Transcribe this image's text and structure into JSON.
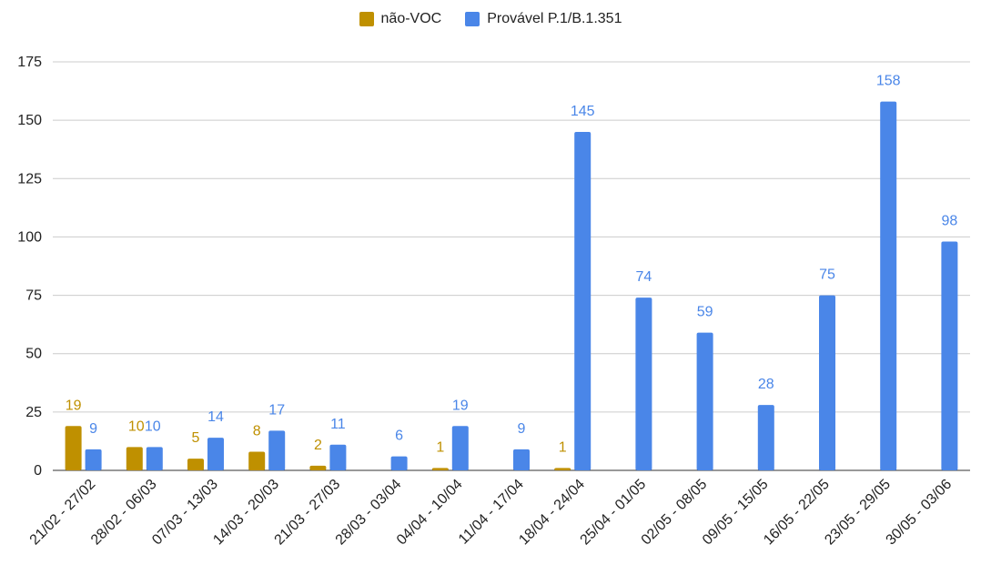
{
  "chart_data": {
    "type": "bar",
    "title": "",
    "xlabel": "",
    "ylabel": "",
    "ylim": [
      0,
      175
    ],
    "yticks": [
      0,
      25,
      50,
      75,
      100,
      125,
      150,
      175
    ],
    "grid": true,
    "legend_position": "top",
    "categories": [
      "21/02 - 27/02",
      "28/02 - 06/03",
      "07/03 - 13/03",
      "14/03 - 20/03",
      "21/03 - 27/03",
      "28/03 - 03/04",
      "04/04 - 10/04",
      "11/04 - 17/04",
      "18/04 - 24/04",
      "25/04 - 01/05",
      "02/05 - 08/05",
      "09/05 - 15/05",
      "16/05 - 22/05",
      "23/05 - 29/05",
      "30/05 - 03/06"
    ],
    "series": [
      {
        "name": "não-VOC",
        "color": "#bf9000",
        "values": [
          19,
          10,
          5,
          8,
          2,
          0,
          1,
          0,
          1,
          0,
          0,
          0,
          0,
          0,
          0
        ],
        "labels": [
          "19",
          "10",
          "5",
          "8",
          "2",
          "",
          "1",
          "",
          "1",
          "",
          "",
          "",
          "",
          "",
          ""
        ]
      },
      {
        "name": "Provável P.1/B.1.351",
        "color": "#4a86e8",
        "values": [
          9,
          10,
          14,
          17,
          11,
          6,
          19,
          9,
          145,
          74,
          59,
          28,
          75,
          158,
          98
        ],
        "labels": [
          "9",
          "10",
          "14",
          "17",
          "11",
          "6",
          "19",
          "9",
          "145",
          "74",
          "59",
          "28",
          "75",
          "158",
          "98"
        ]
      }
    ]
  }
}
